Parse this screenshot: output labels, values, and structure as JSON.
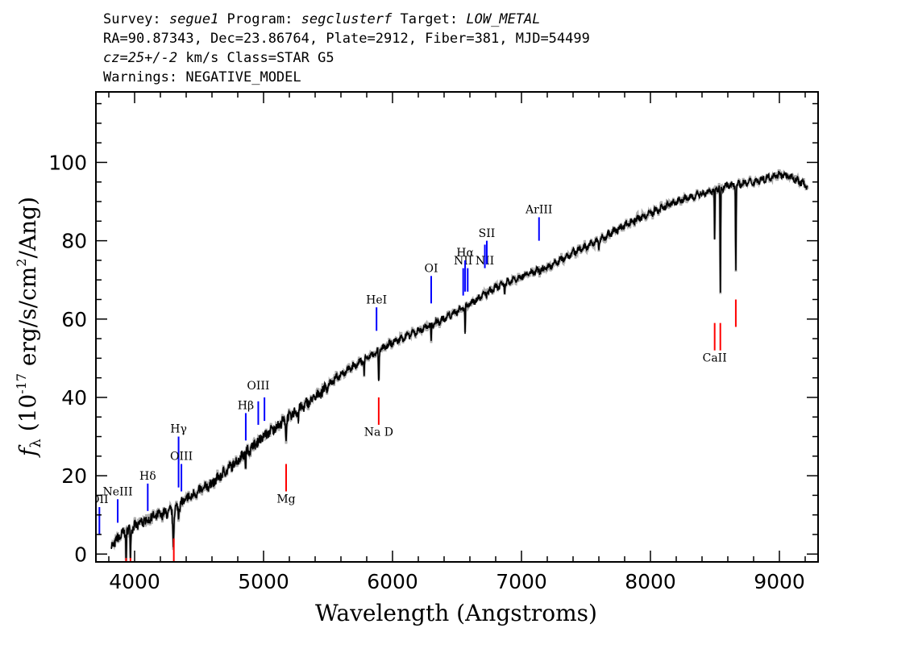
{
  "header": {
    "survey_prefix": "Survey: ",
    "survey": "segue1",
    "program_prefix": " Program: ",
    "program": "segclusterf",
    "target_prefix": " Target: ",
    "target": "LOW_METAL",
    "line2": "RA=90.87343, Dec=23.86764, Plate=2912, Fiber=381, MJD=54499",
    "cz": "cz=25+/-2",
    "cz_rest": " km/s Class=STAR G5",
    "line4": "Warnings: NEGATIVE_MODEL"
  },
  "chart_data": {
    "type": "line",
    "xlabel": "Wavelength (Angstroms)",
    "ylabel_prefix": "f",
    "ylabel_sub": "λ",
    "ylabel_unit_a": " (10",
    "ylabel_exp": "-17",
    "ylabel_unit_b": " erg/s/cm",
    "ylabel_exp2": "2",
    "ylabel_unit_c": "/Ang)",
    "xlim": [
      3700,
      9300
    ],
    "ylim": [
      -2,
      118
    ],
    "xticks": [
      4000,
      5000,
      6000,
      7000,
      8000,
      9000
    ],
    "xtick_labels": [
      "4000",
      "5000",
      "6000",
      "7000",
      "8000",
      "9000"
    ],
    "yticks": [
      0,
      20,
      40,
      60,
      80,
      100
    ],
    "ytick_labels": [
      "0",
      "20",
      "40",
      "60",
      "80",
      "100"
    ],
    "colors": {
      "spectrum": "#000000",
      "error": "#b0b0b0",
      "emission": "#0000ff",
      "absorption": "#ff0000"
    },
    "continuum": [
      [
        3820,
        2
      ],
      [
        3900,
        5
      ],
      [
        4000,
        7
      ],
      [
        4100,
        9
      ],
      [
        4200,
        10
      ],
      [
        4300,
        11
      ],
      [
        4400,
        14
      ],
      [
        4600,
        18
      ],
      [
        4800,
        24
      ],
      [
        5000,
        30
      ],
      [
        5200,
        35
      ],
      [
        5400,
        40
      ],
      [
        5600,
        46
      ],
      [
        5800,
        50
      ],
      [
        6000,
        54
      ],
      [
        6200,
        57
      ],
      [
        6400,
        60
      ],
      [
        6600,
        64
      ],
      [
        6800,
        68
      ],
      [
        7000,
        71
      ],
      [
        7200,
        73
      ],
      [
        7400,
        77
      ],
      [
        7600,
        80
      ],
      [
        7800,
        84
      ],
      [
        8000,
        87
      ],
      [
        8200,
        90
      ],
      [
        8400,
        92
      ],
      [
        8600,
        94
      ],
      [
        8800,
        95
      ],
      [
        9000,
        97
      ],
      [
        9100,
        96
      ],
      [
        9220,
        94
      ]
    ],
    "absorption_features": [
      [
        3934,
        3,
        8
      ],
      [
        3968,
        3,
        7
      ],
      [
        4101,
        2,
        3
      ],
      [
        4300,
        6,
        8
      ],
      [
        4340,
        3,
        3
      ],
      [
        4861,
        3,
        4
      ],
      [
        5175,
        4,
        5
      ],
      [
        5270,
        2,
        3
      ],
      [
        5893,
        4,
        8
      ],
      [
        5780,
        3,
        4
      ],
      [
        6300,
        3,
        4
      ],
      [
        6563,
        3,
        7
      ],
      [
        6870,
        3,
        2
      ],
      [
        7600,
        3,
        2
      ],
      [
        8498,
        3,
        13
      ],
      [
        8542,
        3,
        28
      ],
      [
        8662,
        3,
        22
      ]
    ],
    "emission_lines": [
      {
        "label": "OII",
        "wavelength": 3727,
        "y_bottom": 5,
        "y_top": 12,
        "label_y": 13
      },
      {
        "label": "NeIII",
        "wavelength": 3869,
        "y_bottom": 8,
        "y_top": 14,
        "label_y": 15
      },
      {
        "label": "Hδ",
        "wavelength": 4102,
        "y_bottom": 11,
        "y_top": 18,
        "label_y": 19
      },
      {
        "label": "Hγ",
        "wavelength": 4341,
        "y_bottom": 17,
        "y_top": 30,
        "label_y": 31
      },
      {
        "label": "OIII",
        "wavelength": 4363,
        "y_bottom": 16,
        "y_top": 23,
        "label_y": 24
      },
      {
        "label": "Hβ",
        "wavelength": 4862,
        "y_bottom": 29,
        "y_top": 36,
        "label_y": 37
      },
      {
        "label": "OIII",
        "wavelength": 4959,
        "y_bottom": 33,
        "y_top": 39,
        "label_y": 42
      },
      {
        "label": "",
        "wavelength": 5007,
        "y_bottom": 34,
        "y_top": 40,
        "label_y": 42
      },
      {
        "label": "HeI",
        "wavelength": 5876,
        "y_bottom": 57,
        "y_top": 63,
        "label_y": 64
      },
      {
        "label": "OI",
        "wavelength": 6300,
        "y_bottom": 64,
        "y_top": 71,
        "label_y": 72
      },
      {
        "label": "NII",
        "wavelength": 6548,
        "y_bottom": 66,
        "y_top": 73,
        "label_y": 74
      },
      {
        "label": "Hα",
        "wavelength": 6563,
        "y_bottom": 67,
        "y_top": 75,
        "label_y": 76
      },
      {
        "label": "",
        "wavelength": 6583,
        "y_bottom": 67,
        "y_top": 73,
        "label_y": 74
      },
      {
        "label": "NII",
        "wavelength": 6716,
        "y_bottom": 73,
        "y_top": 79,
        "label_y": 74
      },
      {
        "label": "SII",
        "wavelength": 6731,
        "y_bottom": 74,
        "y_top": 80,
        "label_y": 81
      },
      {
        "label": "ArIII",
        "wavelength": 7136,
        "y_bottom": 80,
        "y_top": 86,
        "label_y": 87
      }
    ],
    "absorption_lines": [
      {
        "label": "",
        "wavelength": 3934,
        "y_top": -1,
        "y_bottom": -3,
        "label_y": null
      },
      {
        "label": "",
        "wavelength": 3968,
        "y_top": -1,
        "y_bottom": -3,
        "label_y": null
      },
      {
        "label": "",
        "wavelength": 4304,
        "y_top": 4,
        "y_bottom": -3,
        "label_y": null
      },
      {
        "label": "Mg",
        "wavelength": 5175,
        "y_top": 23,
        "y_bottom": 16,
        "label_y": 14
      },
      {
        "label": "Na D",
        "wavelength": 5893,
        "y_top": 40,
        "y_bottom": 33,
        "label_y": 31
      },
      {
        "label": "CaII",
        "wavelength": 8498,
        "y_top": 59,
        "y_bottom": 52,
        "label_y": 50
      },
      {
        "label": "",
        "wavelength": 8542,
        "y_top": 59,
        "y_bottom": 52,
        "label_y": null
      },
      {
        "label": "",
        "wavelength": 8662,
        "y_top": 65,
        "y_bottom": 58,
        "label_y": null
      }
    ]
  }
}
